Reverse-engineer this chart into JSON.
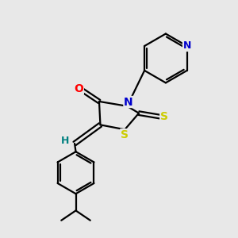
{
  "background_color": "#e8e8e8",
  "bond_color": "#000000",
  "atom_colors": {
    "O": "#ff0000",
    "N": "#0000cc",
    "S": "#cccc00",
    "H": "#008080",
    "C": "#000000"
  },
  "figsize": [
    3.0,
    3.0
  ],
  "dpi": 100,
  "xlim": [
    0,
    10
  ],
  "ylim": [
    0,
    10
  ]
}
